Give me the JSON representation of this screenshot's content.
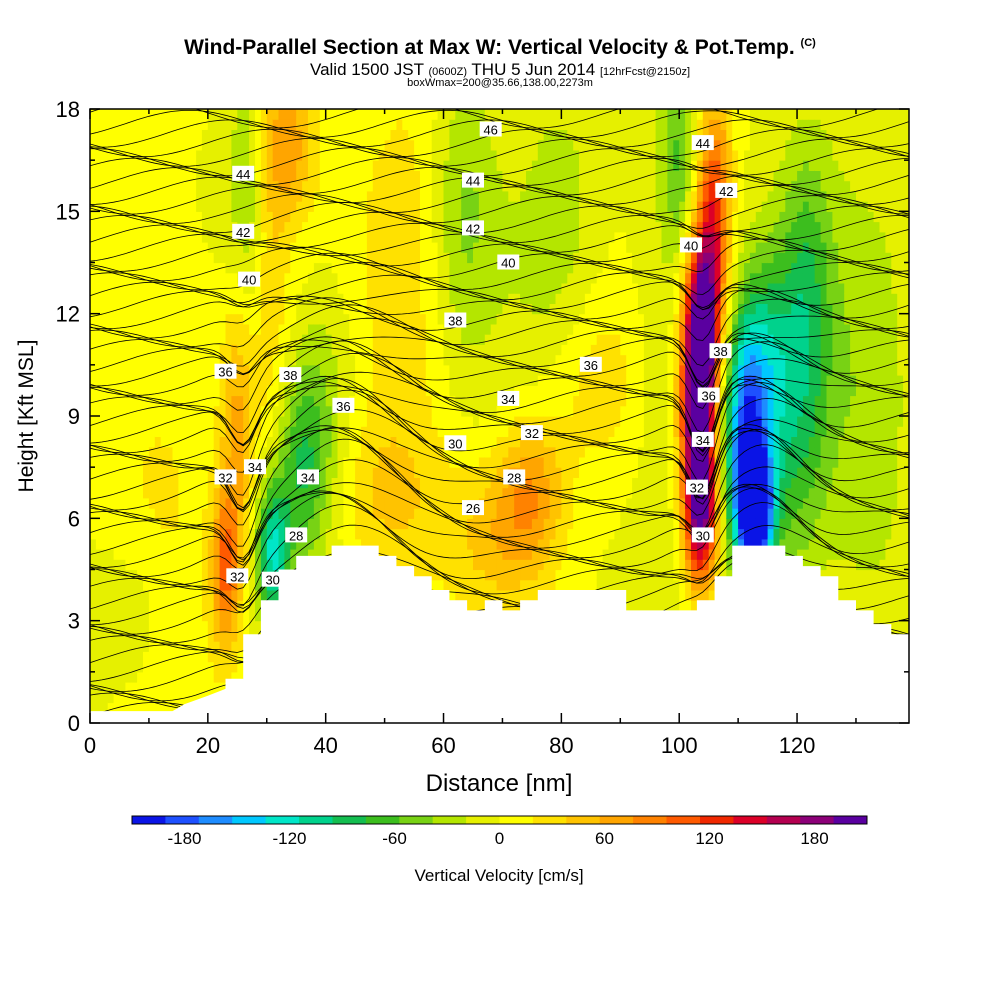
{
  "title": {
    "main": "Wind-Parallel Section at Max W: Vertical Velocity & Pot.Temp.",
    "copyright": "(C)",
    "valid_prefix": "Valid 1500 JST",
    "valid_utc": "(0600Z)",
    "valid_date": "THU 5 Jun 2014",
    "forecast": "[12hrFcst@2150z]",
    "box_info": "boxWmax=200@35.66,138.00,2273m"
  },
  "chart_data": {
    "type": "heatmap",
    "xlabel": "Distance [nm]",
    "ylabel": "Height [Kft MSL]",
    "xlim": [
      0,
      139
    ],
    "ylim": [
      0,
      18
    ],
    "x_ticks": [
      "0",
      "20",
      "40",
      "60",
      "80",
      "100",
      "120"
    ],
    "x_tick_values": [
      0,
      20,
      40,
      60,
      80,
      100,
      120
    ],
    "y_ticks": [
      "0",
      "3",
      "6",
      "9",
      "12",
      "15",
      "18"
    ],
    "y_tick_values": [
      0,
      3,
      6,
      9,
      12,
      15,
      18
    ],
    "colorbar": {
      "label": "Vertical Velocity [cm/s]",
      "tick_labels": [
        "-180",
        "-120",
        "-60",
        "0",
        "60",
        "120",
        "180"
      ],
      "tick_values": [
        -180,
        -120,
        -60,
        0,
        60,
        120,
        180
      ],
      "min": -210,
      "max": 210,
      "colors": [
        "#0a14e6",
        "#1e50ff",
        "#1e8cff",
        "#00c8ff",
        "#00e6c8",
        "#00d28c",
        "#14be50",
        "#3cbe1e",
        "#78d214",
        "#b4e600",
        "#e6f000",
        "#ffff00",
        "#ffe100",
        "#ffc300",
        "#ffa500",
        "#ff8200",
        "#ff5a00",
        "#f02800",
        "#dc0028",
        "#b40050",
        "#8c0078",
        "#5a00a0"
      ]
    },
    "terrain": [
      [
        0,
        0.35
      ],
      [
        14,
        0.35
      ],
      [
        16,
        0.55
      ],
      [
        20,
        0.8
      ],
      [
        23,
        1.0
      ],
      [
        23,
        1.3
      ],
      [
        26,
        1.3
      ],
      [
        26,
        2.6
      ],
      [
        29,
        2.6
      ],
      [
        29,
        3.6
      ],
      [
        32,
        3.6
      ],
      [
        32,
        4.5
      ],
      [
        35,
        4.5
      ],
      [
        35,
        4.9
      ],
      [
        41,
        4.9
      ],
      [
        41,
        5.2
      ],
      [
        49,
        5.2
      ],
      [
        49,
        4.9
      ],
      [
        52,
        4.9
      ],
      [
        52,
        4.6
      ],
      [
        55,
        4.6
      ],
      [
        55,
        4.3
      ],
      [
        58,
        4.3
      ],
      [
        58,
        3.9
      ],
      [
        61,
        3.9
      ],
      [
        61,
        3.6
      ],
      [
        64,
        3.6
      ],
      [
        64,
        3.3
      ],
      [
        67,
        3.3
      ],
      [
        67,
        3.6
      ],
      [
        70,
        3.6
      ],
      [
        70,
        3.3
      ],
      [
        73,
        3.3
      ],
      [
        73,
        3.6
      ],
      [
        76,
        3.6
      ],
      [
        76,
        3.9
      ],
      [
        91,
        3.9
      ],
      [
        91,
        3.3
      ],
      [
        103,
        3.3
      ],
      [
        103,
        3.6
      ],
      [
        106,
        3.6
      ],
      [
        106,
        4.3
      ],
      [
        109,
        4.3
      ],
      [
        109,
        5.2
      ],
      [
        118,
        5.2
      ],
      [
        118,
        4.9
      ],
      [
        121,
        4.9
      ],
      [
        121,
        4.6
      ],
      [
        124,
        4.6
      ],
      [
        124,
        4.3
      ],
      [
        127,
        4.3
      ],
      [
        127,
        3.6
      ],
      [
        130,
        3.6
      ],
      [
        130,
        3.3
      ],
      [
        133,
        3.3
      ],
      [
        133,
        2.9
      ],
      [
        136,
        2.9
      ],
      [
        136,
        2.6
      ],
      [
        139,
        2.6
      ]
    ],
    "velocity_features": [
      {
        "x": 23,
        "z": 4.5,
        "value": 90,
        "sx": 1.6,
        "sz": 1.6
      },
      {
        "x": 25,
        "z": 9,
        "value": 60,
        "sx": 2,
        "sz": 3
      },
      {
        "x": 30,
        "z": 14,
        "value": 45,
        "sx": 2.5,
        "sz": 4
      },
      {
        "x": 34,
        "z": 17,
        "value": 60,
        "sx": 3,
        "sz": 1.5
      },
      {
        "x": 27,
        "z": 15,
        "value": -55,
        "sx": 2.5,
        "sz": 3
      },
      {
        "x": 31,
        "z": 5,
        "value": -120,
        "sx": 2,
        "sz": 1.5
      },
      {
        "x": 36,
        "z": 7.5,
        "value": -70,
        "sx": 3,
        "sz": 2
      },
      {
        "x": 40,
        "z": 9,
        "value": -40,
        "sx": 4,
        "sz": 3
      },
      {
        "x": 50,
        "z": 6.5,
        "value": 40,
        "sx": 8,
        "sz": 2
      },
      {
        "x": 70,
        "z": 5.5,
        "value": 45,
        "sx": 6,
        "sz": 1.5
      },
      {
        "x": 75,
        "z": 7,
        "value": 60,
        "sx": 4,
        "sz": 1.5
      },
      {
        "x": 55,
        "z": 14,
        "value": 30,
        "sx": 6,
        "sz": 4
      },
      {
        "x": 63,
        "z": 15,
        "value": -45,
        "sx": 4,
        "sz": 3
      },
      {
        "x": 80,
        "z": 14,
        "value": -25,
        "sx": 5,
        "sz": 4
      },
      {
        "x": 85,
        "z": 10,
        "value": 35,
        "sx": 6,
        "sz": 2
      },
      {
        "x": 97,
        "z": 12,
        "value": -25,
        "sx": 4,
        "sz": 5
      },
      {
        "x": 103,
        "z": 9,
        "value": 190,
        "sx": 2,
        "sz": 2.5
      },
      {
        "x": 104,
        "z": 11.5,
        "value": 150,
        "sx": 2,
        "sz": 2
      },
      {
        "x": 106,
        "z": 15,
        "value": 110,
        "sx": 2,
        "sz": 2.5
      },
      {
        "x": 104,
        "z": 6,
        "value": 130,
        "sx": 2,
        "sz": 1.5
      },
      {
        "x": 100,
        "z": 16.5,
        "value": -55,
        "sx": 2,
        "sz": 2
      },
      {
        "x": 113,
        "z": 6.2,
        "value": -210,
        "sx": 2,
        "sz": 1.2
      },
      {
        "x": 111,
        "z": 8,
        "value": -140,
        "sx": 2.5,
        "sz": 2.5
      },
      {
        "x": 114,
        "z": 10,
        "value": -90,
        "sx": 3.5,
        "sz": 2.5
      },
      {
        "x": 120,
        "z": 9,
        "value": -60,
        "sx": 4,
        "sz": 4
      },
      {
        "x": 122,
        "z": 13,
        "value": -40,
        "sx": 3,
        "sz": 3
      },
      {
        "x": 132,
        "z": 8,
        "value": -30,
        "sx": 5,
        "sz": 5
      },
      {
        "x": 5,
        "z": 3,
        "value": -30,
        "sx": 6,
        "sz": 1.5
      },
      {
        "x": 12,
        "z": 9,
        "value": 25,
        "sx": 8,
        "sz": 5
      }
    ],
    "isentrope_labels": [
      {
        "text": "44",
        "x": 26,
        "z": 16.1
      },
      {
        "text": "42",
        "x": 26,
        "z": 14.4
      },
      {
        "text": "40",
        "x": 27,
        "z": 13.0
      },
      {
        "text": "36",
        "x": 23,
        "z": 10.3
      },
      {
        "text": "38",
        "x": 34,
        "z": 10.2
      },
      {
        "text": "36",
        "x": 43,
        "z": 9.3
      },
      {
        "text": "32",
        "x": 23,
        "z": 7.2
      },
      {
        "text": "34",
        "x": 28,
        "z": 7.5
      },
      {
        "text": "34",
        "x": 37,
        "z": 7.2
      },
      {
        "text": "32",
        "x": 25,
        "z": 4.3
      },
      {
        "text": "30",
        "x": 31,
        "z": 4.2
      },
      {
        "text": "28",
        "x": 35,
        "z": 5.5
      },
      {
        "text": "46",
        "x": 68,
        "z": 17.4
      },
      {
        "text": "44",
        "x": 65,
        "z": 15.9
      },
      {
        "text": "42",
        "x": 65,
        "z": 14.5
      },
      {
        "text": "40",
        "x": 71,
        "z": 13.5
      },
      {
        "text": "38",
        "x": 62,
        "z": 11.8
      },
      {
        "text": "36",
        "x": 85,
        "z": 10.5
      },
      {
        "text": "34",
        "x": 71,
        "z": 9.5
      },
      {
        "text": "32",
        "x": 75,
        "z": 8.5
      },
      {
        "text": "30",
        "x": 62,
        "z": 8.2
      },
      {
        "text": "28",
        "x": 72,
        "z": 7.2
      },
      {
        "text": "26",
        "x": 65,
        "z": 6.3
      },
      {
        "text": "44",
        "x": 104,
        "z": 17.0
      },
      {
        "text": "42",
        "x": 108,
        "z": 15.6
      },
      {
        "text": "40",
        "x": 102,
        "z": 14.0
      },
      {
        "text": "38",
        "x": 107,
        "z": 10.9
      },
      {
        "text": "36",
        "x": 105,
        "z": 9.6
      },
      {
        "text": "34",
        "x": 104,
        "z": 8.3
      },
      {
        "text": "32",
        "x": 103,
        "z": 6.9
      },
      {
        "text": "30",
        "x": 104,
        "z": 5.5
      }
    ]
  }
}
